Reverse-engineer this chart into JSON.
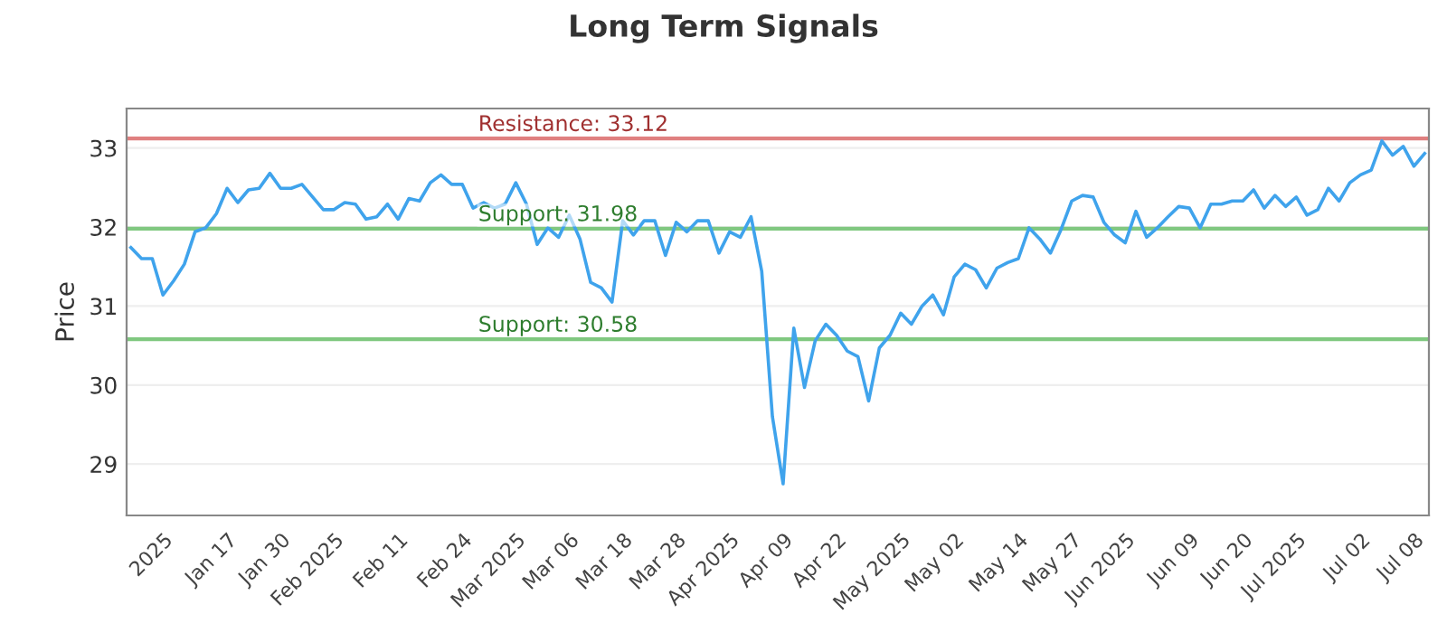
{
  "chart_data": {
    "type": "line",
    "title": "Long Term Signals",
    "ylabel": "Price",
    "categories": [
      null,
      null,
      null,
      "2025",
      null,
      null,
      null,
      null,
      null,
      "Jan 17",
      null,
      null,
      null,
      null,
      "Jan 30",
      null,
      null,
      null,
      null,
      "Feb 2025",
      null,
      null,
      null,
      null,
      null,
      "Feb 11",
      null,
      null,
      null,
      null,
      null,
      "Feb 24",
      null,
      null,
      null,
      null,
      "Mar 2025",
      null,
      null,
      null,
      null,
      "Mar 06",
      null,
      null,
      null,
      null,
      "Mar 18",
      null,
      null,
      null,
      null,
      "Mar 28",
      null,
      null,
      null,
      null,
      "Apr 2025",
      null,
      null,
      null,
      null,
      "Apr 09",
      null,
      null,
      null,
      null,
      "Apr 22",
      null,
      null,
      null,
      null,
      null,
      "May 2025",
      null,
      null,
      null,
      null,
      "May 02",
      null,
      null,
      null,
      null,
      null,
      "May 14",
      null,
      null,
      null,
      null,
      "May 27",
      null,
      null,
      null,
      null,
      "Jun 2025",
      null,
      null,
      null,
      null,
      null,
      "Jun 09",
      null,
      null,
      null,
      null,
      "Jun 20",
      null,
      null,
      null,
      null,
      "Jul 2025",
      null,
      null,
      null,
      null,
      null,
      "Jul 02",
      null,
      null,
      null,
      null,
      "Jul 08",
      null
    ],
    "ylim": [
      28.35,
      33.5
    ],
    "yticks": [
      29,
      30,
      31,
      32,
      33
    ],
    "grid": "y",
    "line_style": "solid",
    "series": [
      {
        "color": "#3fa3ec",
        "values": [
          31.74,
          31.6,
          31.6,
          31.14,
          31.32,
          31.53,
          31.94,
          31.99,
          32.17,
          32.49,
          32.31,
          32.47,
          32.49,
          32.68,
          32.49,
          32.49,
          32.54,
          32.38,
          32.22,
          32.22,
          32.31,
          32.29,
          32.1,
          32.13,
          32.29,
          32.1,
          32.36,
          32.33,
          32.56,
          32.66,
          32.54,
          32.54,
          32.24,
          32.31,
          32.24,
          32.29,
          32.56,
          32.29,
          31.78,
          31.99,
          31.87,
          32.15,
          31.85,
          31.3,
          31.23,
          31.05,
          32.08,
          31.9,
          32.08,
          32.08,
          31.64,
          32.06,
          31.94,
          32.08,
          32.08,
          31.67,
          31.94,
          31.87,
          32.13,
          31.44,
          29.6,
          28.75,
          30.72,
          29.97,
          30.56,
          30.77,
          30.63,
          30.43,
          30.36,
          29.8,
          30.47,
          30.63,
          30.91,
          30.77,
          31.0,
          31.14,
          30.89,
          31.37,
          31.53,
          31.46,
          31.23,
          31.48,
          31.55,
          31.6,
          31.99,
          31.85,
          31.67,
          31.97,
          32.33,
          32.4,
          32.38,
          32.06,
          31.9,
          31.8,
          32.2,
          31.87,
          31.99,
          32.13,
          32.26,
          32.24,
          31.99,
          32.29,
          32.29,
          32.33,
          32.33,
          32.47,
          32.24,
          32.4,
          32.26,
          32.38,
          32.15,
          32.22,
          32.49,
          32.33,
          32.56,
          32.66,
          32.72,
          33.09,
          32.91,
          33.02,
          32.77,
          32.93
        ]
      }
    ],
    "ref_lines": [
      {
        "axis": "y",
        "value": 33.12,
        "label": "Resistance: 33.12",
        "color": "#e08080"
      },
      {
        "axis": "y",
        "value": 31.98,
        "label": "Support: 31.98",
        "color": "#80c880"
      },
      {
        "axis": "y",
        "value": 30.58,
        "label": "Support: 30.58",
        "color": "#80c880"
      }
    ]
  }
}
